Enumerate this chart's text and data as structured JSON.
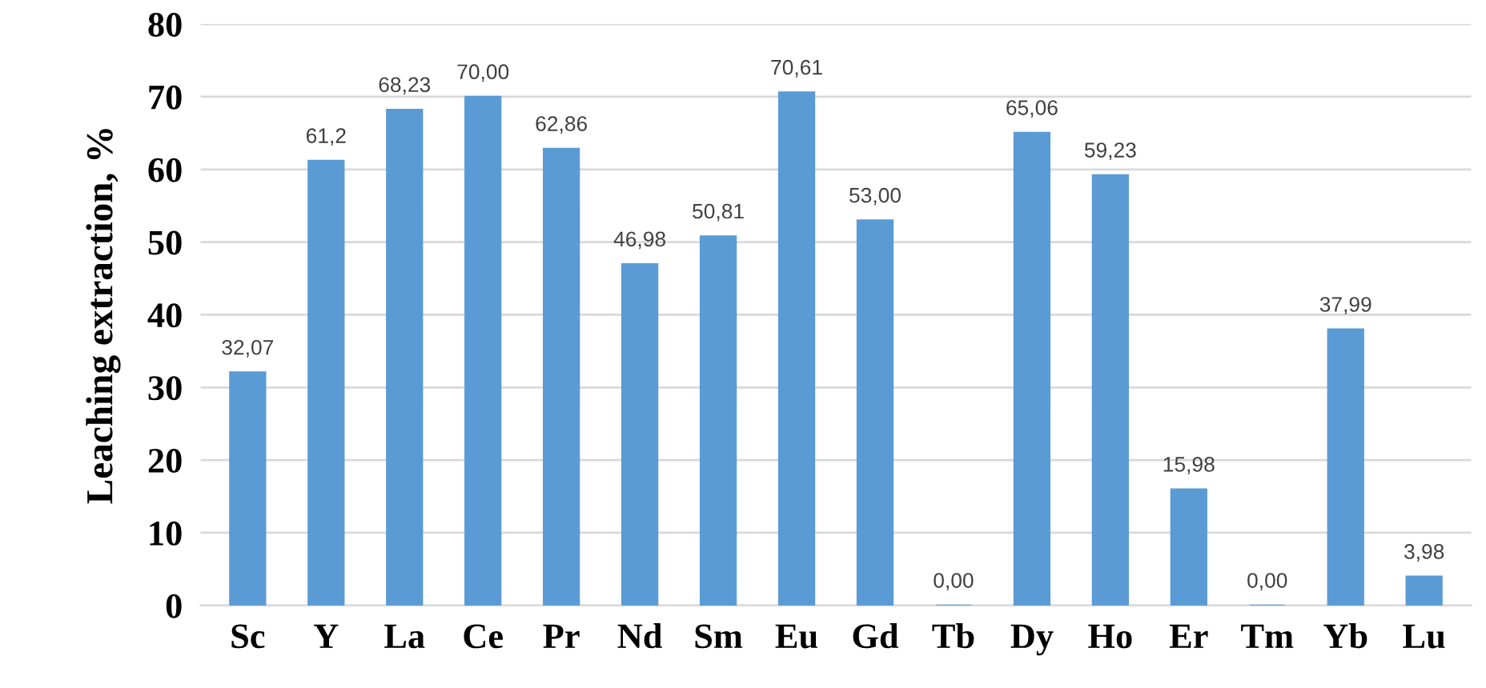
{
  "chart_data": {
    "type": "bar",
    "ylabel": "Leaching extraction, %",
    "categories": [
      "Sc",
      "Y",
      "La",
      "Ce",
      "Pr",
      "Nd",
      "Sm",
      "Eu",
      "Gd",
      "Tb",
      "Dy",
      "Ho",
      "Er",
      "Tm",
      "Yb",
      "Lu"
    ],
    "values": [
      32.07,
      61.2,
      68.23,
      70.0,
      62.86,
      46.98,
      50.81,
      70.61,
      53.0,
      0.0,
      65.06,
      59.23,
      15.98,
      0.0,
      37.99,
      3.98
    ],
    "value_labels": [
      "32,07",
      "61,2",
      "68,23",
      "70,00",
      "62,86",
      "46,98",
      "50,81",
      "70,61",
      "53,00",
      "0,00",
      "65,06",
      "59,23",
      "15,98",
      "0,00",
      "37,99",
      "3,98"
    ],
    "color": "#5b9bd5",
    "ylim": [
      0,
      80
    ],
    "yticks": [
      0,
      10,
      20,
      30,
      40,
      50,
      60,
      70,
      80
    ],
    "grid": "y"
  }
}
